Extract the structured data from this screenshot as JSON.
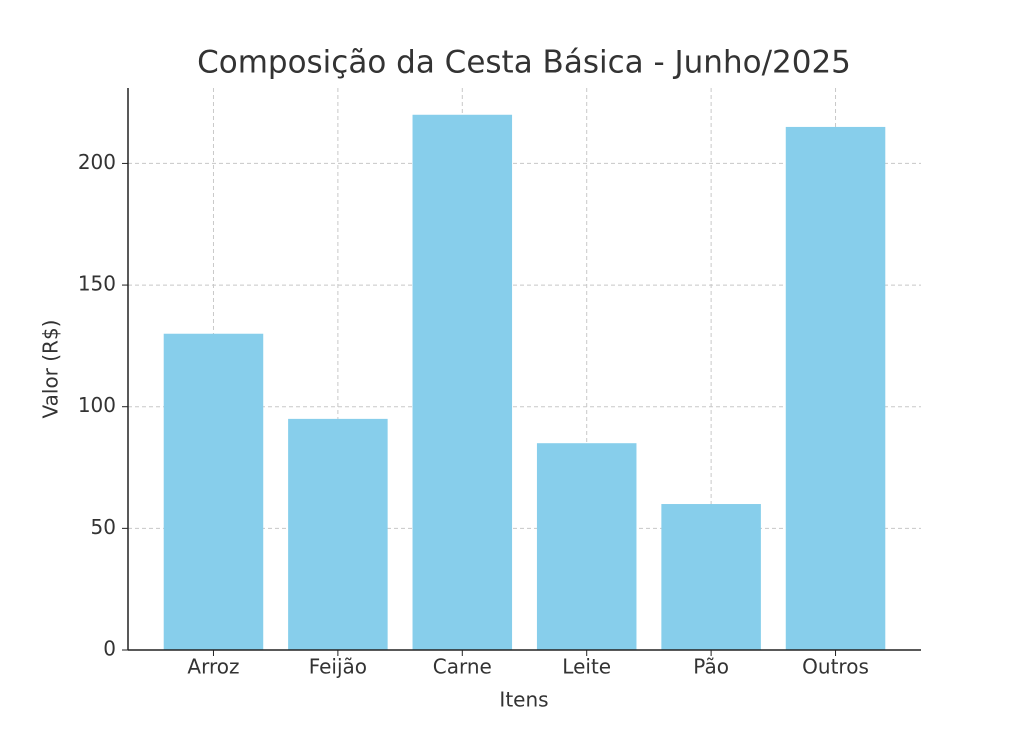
{
  "chart_data": {
    "type": "bar",
    "title": "Composição da Cesta Básica - Junho/2025",
    "x_label": "Itens",
    "y_label": "Valor (R$)",
    "categories": [
      "Arroz",
      "Feijão",
      "Carne",
      "Leite",
      "Pão",
      "Outros"
    ],
    "values": [
      130,
      95,
      220,
      85,
      60,
      215
    ],
    "color": "#87ceeb",
    "ylim": [
      0,
      231
    ],
    "yticks": [
      0,
      50,
      100,
      150,
      200
    ],
    "grid": true
  }
}
